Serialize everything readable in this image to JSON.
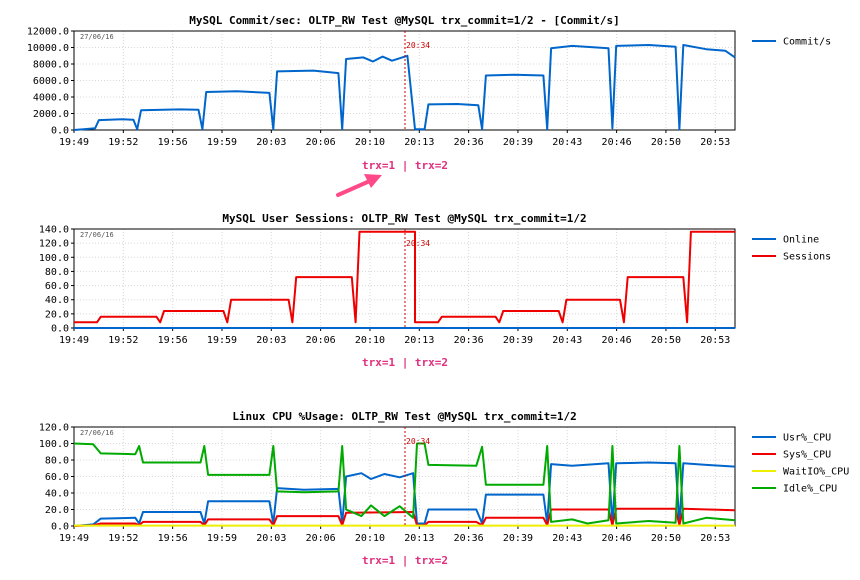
{
  "annotation": {
    "label": "trx=1 | trx=2",
    "marker_time": "20:34"
  },
  "colors": {
    "Commit/s": "#0066cc",
    "Online": "#0066cc",
    "Sessions": "#ee0000",
    "Usr%_CPU": "#0066cc",
    "Sys%_CPU": "#ee0000",
    "WaitIO%_CPU": "#eeee00",
    "Idle%_CPU": "#00aa00",
    "annotation": "#e0307f",
    "arrow": "#ff4a8a",
    "marker": "#cc0000"
  },
  "chart_data": [
    {
      "type": "line",
      "title": "MySQL Commit/sec: OLTP_RW Test @MySQL trx_commit=1/2 - [Commit/s]",
      "date_stamp": "27/06/16",
      "ylim": [
        0,
        12000
      ],
      "y_ticks": [
        "0.0",
        "2000.0",
        "4000.0",
        "6000.0",
        "8000.0",
        "10000.0",
        "12000.0"
      ],
      "x_ticks": [
        "19:49",
        "19:52",
        "19:56",
        "19:59",
        "20:03",
        "20:06",
        "20:10",
        "20:13",
        "20:36",
        "20:39",
        "20:43",
        "20:46",
        "20:50",
        "20:53"
      ],
      "grid": true,
      "legend_placement": "right",
      "series": [
        {
          "name": "Commit/s",
          "segments": [
            [
              0,
              0
            ],
            [
              0.5,
              100
            ],
            [
              1.1,
              200
            ],
            [
              1.3,
              1200
            ],
            [
              2.5,
              1300
            ],
            [
              3.1,
              1250
            ],
            [
              3.3,
              100
            ],
            [
              3.5,
              2400
            ],
            [
              5.5,
              2500
            ],
            [
              6.5,
              2450
            ],
            [
              6.7,
              100
            ],
            [
              6.9,
              4600
            ],
            [
              8.5,
              4700
            ],
            [
              10.2,
              4500
            ],
            [
              10.4,
              100
            ],
            [
              10.6,
              7100
            ],
            [
              12.5,
              7200
            ],
            [
              13.8,
              6900
            ],
            [
              14.0,
              100
            ],
            [
              14.2,
              8600
            ],
            [
              15.1,
              8800
            ],
            [
              15.6,
              8300
            ],
            [
              16.1,
              8900
            ],
            [
              16.6,
              8400
            ],
            [
              17.4,
              9000
            ],
            [
              17.8,
              100
            ],
            [
              18.3,
              100
            ],
            [
              18.5,
              3100
            ],
            [
              20.0,
              3150
            ],
            [
              21.1,
              3000
            ],
            [
              21.3,
              100
            ],
            [
              21.5,
              6600
            ],
            [
              23.0,
              6700
            ],
            [
              24.5,
              6600
            ],
            [
              24.7,
              100
            ],
            [
              24.9,
              9900
            ],
            [
              26.0,
              10200
            ],
            [
              27.9,
              9900
            ],
            [
              28.1,
              200
            ],
            [
              28.3,
              10200
            ],
            [
              30.0,
              10300
            ],
            [
              31.4,
              10100
            ],
            [
              31.6,
              100
            ],
            [
              31.8,
              10300
            ],
            [
              33.0,
              9800
            ],
            [
              34.0,
              9600
            ],
            [
              34.5,
              8800
            ]
          ]
        }
      ]
    },
    {
      "type": "line",
      "title": "MySQL User Sessions: OLTP_RW Test @MySQL trx_commit=1/2",
      "date_stamp": "27/06/16",
      "ylim": [
        0,
        140
      ],
      "y_ticks": [
        "0.0",
        "20.0",
        "40.0",
        "60.0",
        "80.0",
        "100.0",
        "120.0",
        "140.0"
      ],
      "x_ticks": [
        "19:49",
        "19:52",
        "19:56",
        "19:59",
        "20:03",
        "20:06",
        "20:10",
        "20:13",
        "20:36",
        "20:39",
        "20:43",
        "20:46",
        "20:50",
        "20:53"
      ],
      "grid": true,
      "legend_placement": "right",
      "series": [
        {
          "name": "Online",
          "segments": [
            [
              0,
              0
            ],
            [
              34.5,
              0
            ]
          ]
        },
        {
          "name": "Sessions",
          "segments": [
            [
              0,
              8
            ],
            [
              1.2,
              8
            ],
            [
              1.4,
              16
            ],
            [
              4.3,
              16
            ],
            [
              4.5,
              8
            ],
            [
              4.7,
              24
            ],
            [
              7.8,
              24
            ],
            [
              8.0,
              8
            ],
            [
              8.2,
              40
            ],
            [
              11.2,
              40
            ],
            [
              11.4,
              8
            ],
            [
              11.6,
              72
            ],
            [
              14.5,
              72
            ],
            [
              14.7,
              8
            ],
            [
              14.9,
              136
            ],
            [
              17.8,
              136
            ],
            [
              17.8,
              8
            ],
            [
              18.0,
              8
            ],
            [
              19.0,
              8
            ],
            [
              19.2,
              16
            ],
            [
              22.0,
              16
            ],
            [
              22.2,
              8
            ],
            [
              22.4,
              24
            ],
            [
              25.3,
              24
            ],
            [
              25.5,
              8
            ],
            [
              25.7,
              40
            ],
            [
              28.5,
              40
            ],
            [
              28.7,
              8
            ],
            [
              28.9,
              72
            ],
            [
              31.8,
              72
            ],
            [
              32.0,
              8
            ],
            [
              32.2,
              136
            ],
            [
              34.5,
              136
            ]
          ]
        }
      ]
    },
    {
      "type": "line",
      "title": "Linux CPU %Usage: OLTP_RW Test @MySQL trx_commit=1/2",
      "date_stamp": "27/06/16",
      "ylim": [
        0,
        120
      ],
      "y_ticks": [
        "0.0",
        "20.0",
        "40.0",
        "60.0",
        "80.0",
        "100.0",
        "120.0"
      ],
      "x_ticks": [
        "19:49",
        "19:52",
        "19:56",
        "19:59",
        "20:03",
        "20:06",
        "20:10",
        "20:13",
        "20:36",
        "20:39",
        "20:43",
        "20:46",
        "20:50",
        "20:53"
      ],
      "grid": true,
      "legend_placement": "right",
      "series": [
        {
          "name": "Usr%_CPU",
          "segments": [
            [
              0,
              0
            ],
            [
              1.0,
              2
            ],
            [
              1.4,
              9
            ],
            [
              3.2,
              10
            ],
            [
              3.4,
              3
            ],
            [
              3.6,
              17
            ],
            [
              6.6,
              17
            ],
            [
              6.8,
              3
            ],
            [
              7.0,
              30
            ],
            [
              10.2,
              30
            ],
            [
              10.4,
              3
            ],
            [
              10.6,
              46
            ],
            [
              12.0,
              44
            ],
            [
              13.8,
              45
            ],
            [
              14.0,
              3
            ],
            [
              14.2,
              60
            ],
            [
              15.0,
              64
            ],
            [
              15.5,
              57
            ],
            [
              16.2,
              63
            ],
            [
              17.0,
              59
            ],
            [
              17.7,
              64
            ],
            [
              17.9,
              3
            ],
            [
              18.3,
              3
            ],
            [
              18.5,
              20
            ],
            [
              21.0,
              20
            ],
            [
              21.3,
              3
            ],
            [
              21.5,
              38
            ],
            [
              24.5,
              38
            ],
            [
              24.7,
              3
            ],
            [
              24.9,
              75
            ],
            [
              26.0,
              73
            ],
            [
              27.9,
              76
            ],
            [
              28.1,
              3
            ],
            [
              28.3,
              76
            ],
            [
              30.0,
              77
            ],
            [
              31.4,
              76
            ],
            [
              31.6,
              3
            ],
            [
              31.8,
              76
            ],
            [
              33.0,
              74
            ],
            [
              34.5,
              72
            ]
          ]
        },
        {
          "name": "Sys%_CPU",
          "segments": [
            [
              0,
              0
            ],
            [
              1.0,
              1
            ],
            [
              1.4,
              3
            ],
            [
              3.2,
              3
            ],
            [
              3.4,
              1
            ],
            [
              3.6,
              5
            ],
            [
              6.6,
              5
            ],
            [
              6.8,
              1
            ],
            [
              7.0,
              8
            ],
            [
              10.2,
              8
            ],
            [
              10.4,
              1
            ],
            [
              10.6,
              12
            ],
            [
              13.8,
              12
            ],
            [
              14.0,
              1
            ],
            [
              14.2,
              16
            ],
            [
              17.7,
              17
            ],
            [
              17.9,
              1
            ],
            [
              18.3,
              1
            ],
            [
              18.5,
              5
            ],
            [
              21.0,
              5
            ],
            [
              21.3,
              1
            ],
            [
              21.5,
              10
            ],
            [
              24.5,
              10
            ],
            [
              24.7,
              1
            ],
            [
              24.9,
              20
            ],
            [
              27.9,
              20
            ],
            [
              28.1,
              1
            ],
            [
              28.3,
              21
            ],
            [
              31.4,
              21
            ],
            [
              31.6,
              1
            ],
            [
              31.8,
              21
            ],
            [
              34.5,
              19
            ]
          ]
        },
        {
          "name": "WaitIO%_CPU",
          "segments": [
            [
              0,
              0.5
            ],
            [
              34.5,
              0.5
            ]
          ]
        },
        {
          "name": "Idle%_CPU",
          "segments": [
            [
              0,
              100
            ],
            [
              1.0,
              99
            ],
            [
              1.4,
              88
            ],
            [
              3.2,
              87
            ],
            [
              3.4,
              97
            ],
            [
              3.6,
              77
            ],
            [
              6.6,
              77
            ],
            [
              6.8,
              97
            ],
            [
              7.0,
              62
            ],
            [
              10.2,
              62
            ],
            [
              10.4,
              97
            ],
            [
              10.6,
              42
            ],
            [
              12.0,
              41
            ],
            [
              13.8,
              42
            ],
            [
              14.0,
              97
            ],
            [
              14.2,
              20
            ],
            [
              15.0,
              12
            ],
            [
              15.5,
              25
            ],
            [
              16.2,
              12
            ],
            [
              17.0,
              24
            ],
            [
              17.7,
              10
            ],
            [
              17.9,
              100
            ],
            [
              18.3,
              100
            ],
            [
              18.5,
              74
            ],
            [
              21.0,
              73
            ],
            [
              21.3,
              96
            ],
            [
              21.5,
              50
            ],
            [
              24.5,
              50
            ],
            [
              24.7,
              97
            ],
            [
              24.9,
              5
            ],
            [
              26.0,
              8
            ],
            [
              26.8,
              3
            ],
            [
              27.9,
              7
            ],
            [
              28.1,
              97
            ],
            [
              28.3,
              3
            ],
            [
              30.0,
              6
            ],
            [
              31.4,
              4
            ],
            [
              31.6,
              97
            ],
            [
              31.8,
              3
            ],
            [
              33.0,
              10
            ],
            [
              34.5,
              7
            ]
          ]
        }
      ]
    }
  ]
}
